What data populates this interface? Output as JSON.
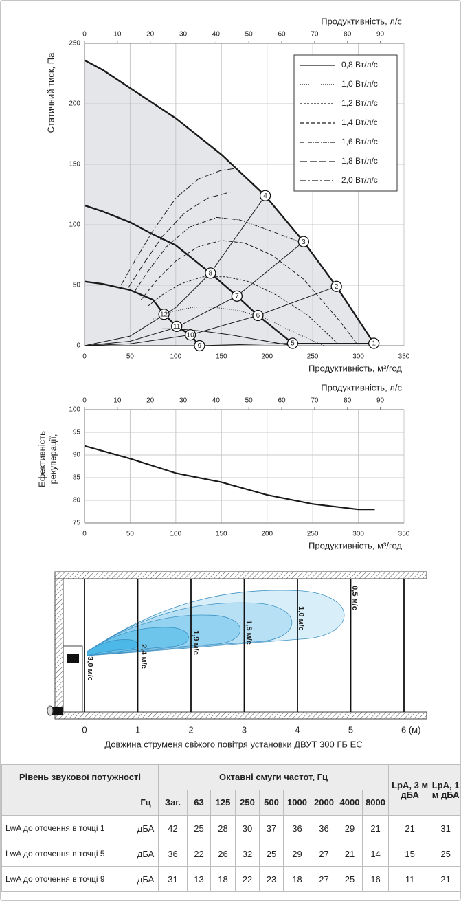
{
  "chart_data": [
    {
      "type": "line",
      "x_label": "Продуктивність, м³/год",
      "x2_label": "Продуктивність, л/с",
      "y_label": "Статичний тиск, Па",
      "xlim": [
        0,
        350
      ],
      "xticks": [
        0,
        50,
        100,
        150,
        200,
        250,
        300,
        350
      ],
      "x2lim": [
        0,
        97.2
      ],
      "x2ticks": [
        0,
        10,
        20,
        30,
        40,
        50,
        60,
        70,
        80,
        90
      ],
      "ylim": [
        0,
        250
      ],
      "yticks": [
        0,
        50,
        100,
        150,
        200,
        250
      ],
      "grid": true,
      "legend": "upper right",
      "fan_curves": [
        {
          "color": "#1a1a1a",
          "x": [
            0,
            20,
            50,
            100,
            150,
            198,
            240,
            276,
            317
          ],
          "values": [
            236,
            228,
            213,
            188,
            158,
            124,
            86,
            49,
            2
          ]
        },
        {
          "color": "#1a1a1a",
          "x": [
            0,
            20,
            50,
            75,
            100,
            138,
            167,
            190,
            228
          ],
          "values": [
            116,
            111,
            102,
            92,
            83,
            60,
            41,
            25,
            2
          ]
        },
        {
          "color": "#1a1a1a",
          "x": [
            0,
            20,
            50,
            75,
            87,
            101,
            116,
            126
          ],
          "values": [
            53,
            51,
            46,
            38,
            26,
            16,
            9,
            0
          ]
        }
      ],
      "system_curves": [
        {
          "color": "#1a1a1a",
          "x": [
            0,
            50,
            100,
            138,
            198
          ],
          "values": [
            0,
            7.9,
            31.6,
            60,
            124
          ]
        },
        {
          "color": "#1a1a1a",
          "x": [
            0,
            50,
            100,
            167,
            240
          ],
          "values": [
            0,
            3.7,
            15,
            41,
            86
          ]
        },
        {
          "color": "#1a1a1a",
          "x": [
            0,
            50,
            116,
            190,
            276
          ],
          "values": [
            0,
            1.6,
            9,
            25,
            49
          ]
        },
        {
          "color": "#1a1a1a",
          "x": [
            0,
            126,
            228,
            317
          ],
          "values": [
            0,
            0,
            2,
            2
          ]
        }
      ],
      "series": [
        {
          "name": "0,8 Вт/л/с",
          "color": "#1a1a1a",
          "style": "solid",
          "x": [
            85,
            100,
            130,
            160,
            190,
            220,
            230
          ],
          "values": [
            14,
            14,
            12,
            9,
            5,
            1,
            0
          ]
        },
        {
          "name": "1,0 Вт/л/с",
          "color": "#1a1a1a",
          "style": "dotted",
          "x": [
            75,
            95,
            120,
            140,
            170,
            200,
            230,
            262
          ],
          "values": [
            22,
            28,
            32,
            32,
            29,
            22,
            11,
            0
          ]
        },
        {
          "name": "1,2 Вт/л/с",
          "color": "#1a1a1a",
          "style": "short-dash",
          "x": [
            70,
            85,
            105,
            130,
            155,
            180,
            210,
            245,
            277
          ],
          "values": [
            33,
            42,
            51,
            57,
            57,
            53,
            42,
            25,
            2
          ]
        },
        {
          "name": "1,4 Вт/л/с",
          "color": "#1a1a1a",
          "style": "dash",
          "x": [
            62,
            80,
            100,
            125,
            150,
            175,
            205,
            240,
            280,
            298
          ],
          "values": [
            38,
            55,
            70,
            82,
            87,
            85,
            75,
            55,
            20,
            2
          ]
        },
        {
          "name": "1,6 Вт/л/с",
          "color": "#1a1a1a",
          "style": "dash-dot",
          "x": [
            55,
            70,
            90,
            115,
            145,
            170,
            200,
            235
          ],
          "values": [
            45,
            62,
            82,
            98,
            106,
            104,
            96,
            86
          ]
        },
        {
          "name": "1,8 Вт/л/с",
          "color": "#1a1a1a",
          "style": "long-dash",
          "x": [
            48,
            65,
            85,
            110,
            135,
            160,
            195
          ],
          "values": [
            48,
            68,
            90,
            110,
            122,
            127,
            127
          ]
        },
        {
          "name": "2,0 Вт/л/с",
          "color": "#1a1a1a",
          "style": "long-dash-dot",
          "x": [
            40,
            55,
            75,
            100,
            125,
            150,
            170
          ],
          "values": [
            50,
            70,
            95,
            122,
            138,
            145,
            147
          ]
        }
      ],
      "points": [
        {
          "label": "1",
          "x": 317,
          "y": 2
        },
        {
          "label": "2",
          "x": 276,
          "y": 49
        },
        {
          "label": "3",
          "x": 240,
          "y": 86
        },
        {
          "label": "4",
          "x": 198,
          "y": 124
        },
        {
          "label": "5",
          "x": 228,
          "y": 2
        },
        {
          "label": "6",
          "x": 190,
          "y": 25
        },
        {
          "label": "7",
          "x": 167,
          "y": 41
        },
        {
          "label": "8",
          "x": 138,
          "y": 60
        },
        {
          "label": "9",
          "x": 126,
          "y": 0
        },
        {
          "label": "10",
          "x": 116,
          "y": 9
        },
        {
          "label": "11",
          "x": 101,
          "y": 16
        },
        {
          "label": "12",
          "x": 87,
          "y": 26
        }
      ]
    },
    {
      "type": "line",
      "x_label": "Продуктивність, м³/год",
      "x2_label": "Продуктивність, л/с",
      "y_label": [
        "Ефективність",
        "рекуперації,"
      ],
      "xlim": [
        0,
        350
      ],
      "xticks": [
        0,
        50,
        100,
        150,
        200,
        250,
        300,
        350
      ],
      "x2lim": [
        0,
        97.2
      ],
      "x2ticks": [
        0,
        10,
        20,
        30,
        40,
        50,
        60,
        70,
        80,
        90
      ],
      "ylim": [
        75,
        100
      ],
      "yticks": [
        75,
        80,
        85,
        90,
        95,
        100
      ],
      "grid": true,
      "color": "#1a1a1a",
      "x": [
        0,
        50,
        100,
        150,
        200,
        250,
        300,
        318
      ],
      "values": [
        92,
        89.2,
        86,
        84,
        81.2,
        79.2,
        78,
        78
      ]
    }
  ],
  "jet_diagram": {
    "velocities": [
      "3,0 м/с",
      "2,4 м/с",
      "1,9 м/с",
      "1,5 м/с",
      "1,0 м/с",
      "0,5 м/с"
    ],
    "xticks": [
      0,
      1,
      2,
      3,
      4,
      5,
      {
        "value": 6,
        "label": "6 (м)"
      }
    ],
    "caption": "Довжина струменя свіжого повітря установки ДВУТ 300 ГБ ЕС"
  },
  "table": {
    "header": [
      "Рівень звукової потужності",
      "Октавні смуги частот, Гц",
      "LpA, 3 м дБА",
      "LpA, 1 м дБА"
    ],
    "subheader": [
      "Гц",
      "Заг.",
      63,
      125,
      250,
      500,
      1000,
      2000,
      4000,
      8000
    ],
    "rows": [
      [
        "LwA до оточення в точці 1",
        "дБА",
        42,
        25,
        28,
        30,
        37,
        36,
        36,
        29,
        21,
        21,
        31
      ],
      [
        "LwA до оточення в точці 5",
        "дБА",
        36,
        22,
        26,
        32,
        25,
        29,
        27,
        21,
        14,
        15,
        25
      ],
      [
        "LwA до оточення в точці 9",
        "дБА",
        31,
        13,
        18,
        22,
        23,
        18,
        27,
        25,
        16,
        11,
        21
      ]
    ]
  }
}
